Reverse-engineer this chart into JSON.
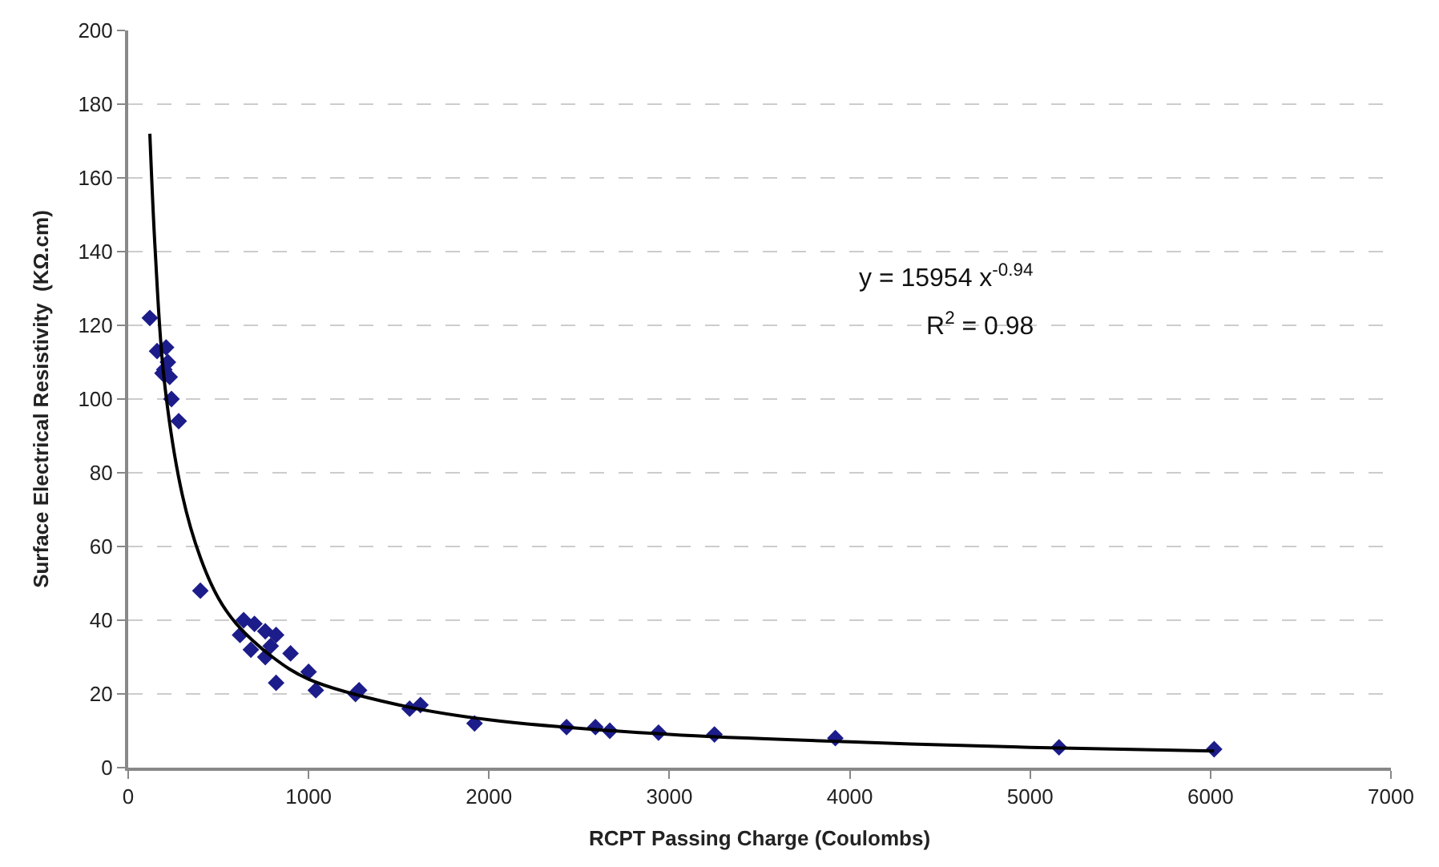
{
  "chart_data": {
    "type": "scatter",
    "xlabel": "RCPT Passing Charge (Coulombs)",
    "ylabel": "Surface Electrical Resistivity  (KΩ.cm)",
    "xlim": [
      0,
      7000
    ],
    "xticks": [
      0,
      1000,
      2000,
      3000,
      4000,
      5000,
      6000,
      7000
    ],
    "ylim": [
      0,
      200
    ],
    "yticks": [
      0,
      20,
      40,
      60,
      80,
      100,
      120,
      140,
      160,
      180,
      200
    ],
    "grid": "y",
    "marker": "diamond",
    "series": [
      {
        "color": "#1c1c8a",
        "x": [
          120,
          160,
          190,
          200,
          210,
          220,
          230,
          240,
          280,
          400,
          620,
          640,
          680,
          700,
          760,
          760,
          790,
          820,
          820,
          900,
          1000,
          1040,
          1260,
          1280,
          1560,
          1620,
          1920,
          2430,
          2590,
          2670,
          2940,
          3250,
          3920,
          5160,
          6020
        ],
        "values": [
          122,
          113,
          107,
          108,
          114,
          110,
          106,
          100,
          94,
          48,
          36,
          40,
          32,
          39,
          37,
          30,
          33,
          36,
          23,
          31,
          26,
          21,
          20,
          21,
          16,
          17,
          12,
          11,
          11,
          10,
          9.5,
          9,
          8,
          5.5,
          5
        ]
      },
      {
        "type": "line",
        "color": "#000000",
        "marker": "none",
        "x": [
          120,
          150,
          200,
          300,
          400,
          500,
          600,
          800,
          1000,
          1500,
          2000,
          3000,
          4000,
          5000,
          6020
        ],
        "values": [
          172,
          140,
          105,
          74,
          57,
          46,
          39,
          30,
          24,
          17,
          13,
          9,
          7,
          5.5,
          4.5
        ]
      }
    ],
    "annotations": [
      "y = 15954 x$^{-0.94}$",
      "R$^{2}$ = 0.98"
    ]
  }
}
